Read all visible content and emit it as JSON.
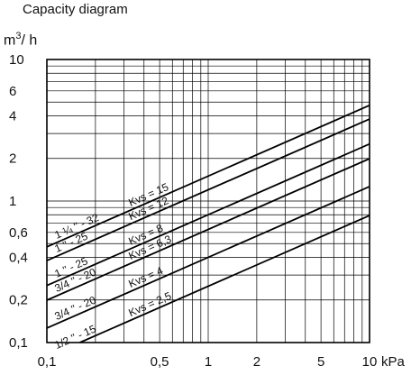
{
  "chart_data": {
    "type": "line",
    "title": "Capacity diagram",
    "ylabel_text": "m",
    "ylabel_sup": "3",
    "ylabel_tail": "/ h",
    "xunit": "kPa",
    "x_scale": "log",
    "y_scale": "log",
    "grid": true,
    "xlim": [
      0.1,
      10
    ],
    "ylim": [
      0.1,
      10
    ],
    "x_ticks": [
      {
        "value": 0.1,
        "label": "0,1"
      },
      {
        "value": 0.5,
        "label": "0,5"
      },
      {
        "value": 1,
        "label": "1"
      },
      {
        "value": 2,
        "label": "2"
      },
      {
        "value": 5,
        "label": "5"
      },
      {
        "value": 10,
        "label": "10"
      }
    ],
    "y_ticks": [
      {
        "value": 0.1,
        "label": "0,1"
      },
      {
        "value": 0.2,
        "label": "0,2"
      },
      {
        "value": 0.4,
        "label": "0,4"
      },
      {
        "value": 0.6,
        "label": "0,6"
      },
      {
        "value": 1,
        "label": "1"
      },
      {
        "value": 2,
        "label": "2"
      },
      {
        "value": 4,
        "label": "4"
      },
      {
        "value": 6,
        "label": "6"
      },
      {
        "value": 10,
        "label": "10"
      }
    ],
    "series": [
      {
        "kvs_label": "Kvs = 15",
        "size_label": "1 ¼ '' - 32",
        "kvs": 15
      },
      {
        "kvs_label": "Kvs = 12",
        "size_label": "1 '' - 25",
        "kvs": 12
      },
      {
        "kvs_label": "Kvs = 8",
        "size_label": "1 '' - 25",
        "kvs": 8
      },
      {
        "kvs_label": "Kvs = 6,3",
        "size_label": "3/4 '' - 20",
        "kvs": 6.3
      },
      {
        "kvs_label": "Kvs = 4",
        "size_label": "3/4 '' - 20",
        "kvs": 4
      },
      {
        "kvs_label": "Kvs = 2,5",
        "size_label": "1/2 '' - 15",
        "kvs": 2.5
      }
    ]
  }
}
